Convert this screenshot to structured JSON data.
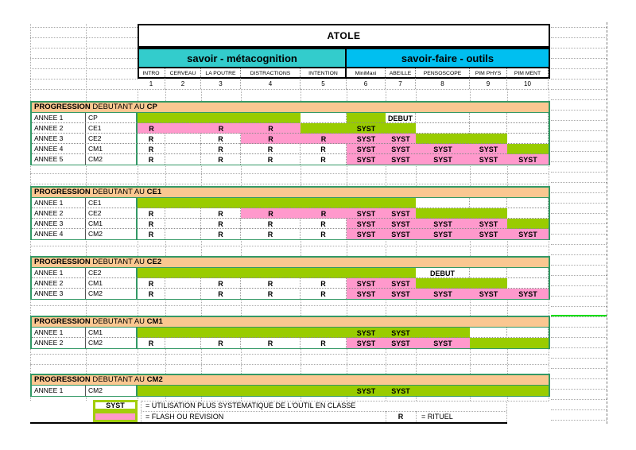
{
  "title": "ATOLE",
  "bands": {
    "metacognition": {
      "label": "savoir - métacognition",
      "color": "#33cccc"
    },
    "outils": {
      "label": "savoir-faire - outils",
      "color": "#00bff0"
    }
  },
  "columns": [
    {
      "name": "INTRO",
      "num": "1"
    },
    {
      "name": "CERVEAU",
      "num": "2"
    },
    {
      "name": "LA POUTRE",
      "num": "3"
    },
    {
      "name": "DISTRACTIONS",
      "num": "4"
    },
    {
      "name": "INTENTION",
      "num": "5"
    },
    {
      "name": "MiniMaxi",
      "num": "6"
    },
    {
      "name": "ABEILLE",
      "num": "7"
    },
    {
      "name": "PENSOSCOPE",
      "num": "8"
    },
    {
      "name": "PIM PHYS",
      "num": "9"
    },
    {
      "name": "PIM MENT",
      "num": "10"
    }
  ],
  "colors": {
    "green": "#99cc00",
    "pink": "#ff99cc",
    "orange": "#fac791",
    "section_border": "#339966",
    "white": "#ffffff"
  },
  "sections": [
    {
      "title": {
        "prefix": "PROGRESSION",
        "connector": " DEBUTANT AU ",
        "level": "CP"
      },
      "rows": [
        {
          "annee": "ANNEE 1",
          "classe": "CP",
          "cells": [
            "g",
            "g",
            "g",
            "g",
            "w",
            "g",
            "w:DEBUT",
            "w",
            "w",
            "w"
          ]
        },
        {
          "annee": "ANNEE 2",
          "classe": "CE1",
          "cells": [
            "p:R",
            "p",
            "p:R",
            "p:R",
            "g",
            "g:SYST",
            "g",
            "w",
            "w",
            "w"
          ]
        },
        {
          "annee": "ANNEE 3",
          "classe": "CE2",
          "cells": [
            "w:R",
            "w",
            "w:R",
            "p:R",
            "p:R",
            "p:SYST",
            "p:SYST",
            "g",
            "g",
            "w"
          ]
        },
        {
          "annee": "ANNEE 4",
          "classe": "CM1",
          "cells": [
            "w:R",
            "w",
            "w:R",
            "w:R",
            "w:R",
            "p:SYST",
            "p:SYST",
            "p:SYST",
            "p:SYST",
            "g"
          ]
        },
        {
          "annee": "ANNEE 5",
          "classe": "CM2",
          "cells": [
            "w:R",
            "w",
            "w:R",
            "w:R",
            "w:R",
            "p:SYST",
            "p:SYST",
            "p:SYST",
            "p:SYST",
            "p:SYST"
          ]
        }
      ]
    },
    {
      "title": {
        "prefix": "PROGRESSION",
        "connector": " DEBUTANT AU ",
        "level": "CE1"
      },
      "rows": [
        {
          "annee": "ANNEE 1",
          "classe": "CE1",
          "cells": [
            "g",
            "g",
            "g",
            "g",
            "g",
            "g",
            "g",
            "w",
            "w",
            "w"
          ]
        },
        {
          "annee": "ANNEE 2",
          "classe": "CE2",
          "cells": [
            "w:R",
            "w",
            "w:R",
            "p:R",
            "p:R",
            "p:SYST",
            "p:SYST",
            "g",
            "g",
            "w"
          ]
        },
        {
          "annee": "ANNEE 3",
          "classe": "CM1",
          "cells": [
            "w:R",
            "w",
            "w:R",
            "w:R",
            "w:R",
            "p:SYST",
            "p:SYST",
            "p:SYST",
            "p:SYST",
            "g"
          ]
        },
        {
          "annee": "ANNEE 4",
          "classe": "CM2",
          "cells": [
            "w:R",
            "w",
            "w:R",
            "w:R",
            "w:R",
            "p:SYST",
            "p:SYST",
            "p:SYST",
            "p:SYST",
            "p:SYST"
          ]
        }
      ]
    },
    {
      "title": {
        "prefix": "PROGRESSION",
        "connector": " DEBUTANT AU ",
        "level": "CE2"
      },
      "rows": [
        {
          "annee": "ANNEE 1",
          "classe": "CE2",
          "cells": [
            "g",
            "g",
            "g",
            "g",
            "g",
            "g",
            "g",
            "w:DEBUT",
            "w",
            "w"
          ]
        },
        {
          "annee": "ANNEE 2",
          "classe": "CM1",
          "cells": [
            "w:R",
            "w",
            "w:R",
            "w:R",
            "w:R",
            "p:SYST",
            "p:SYST",
            "g",
            "g",
            "w"
          ]
        },
        {
          "annee": "ANNEE 3",
          "classe": "CM2",
          "cells": [
            "w:R",
            "w",
            "w:R",
            "w:R",
            "w:R",
            "p:SYST",
            "p:SYST",
            "p:SYST",
            "p:SYST",
            "p:SYST"
          ]
        }
      ]
    },
    {
      "title": {
        "prefix": "PROGRESSION",
        "connector": " DEBUTANT AU ",
        "level": "CM1"
      },
      "rows": [
        {
          "annee": "ANNEE 1",
          "classe": "CM1",
          "cells": [
            "g",
            "g",
            "g",
            "g",
            "g",
            "g:SYST",
            "g:SYST",
            "g",
            "w",
            "w"
          ]
        },
        {
          "annee": "ANNEE 2",
          "classe": "CM2",
          "cells": [
            "w:R",
            "w",
            "w:R",
            "w:R",
            "w:R",
            "p:SYST",
            "p:SYST",
            "p:SYST",
            "g",
            "g"
          ]
        }
      ]
    },
    {
      "title": {
        "prefix": "PROGRESSION",
        "connector": " DEBUTANT AU ",
        "level": "CM2"
      },
      "rows": [
        {
          "annee": "ANNEE 1",
          "classe": "CM2",
          "cells": [
            "g",
            "g",
            "g",
            "g",
            "g",
            "g:SYST",
            "g:SYST",
            "g",
            "g",
            "g"
          ]
        }
      ]
    }
  ],
  "legend": {
    "syst_label": "SYST",
    "syst_text": "= UTILISATION PLUS SYSTEMATIQUE DE L'OUTIL EN CLASSE",
    "flash_text": "= FLASH OU REVISION",
    "r_label": "R",
    "r_text": "= RITUEL"
  }
}
